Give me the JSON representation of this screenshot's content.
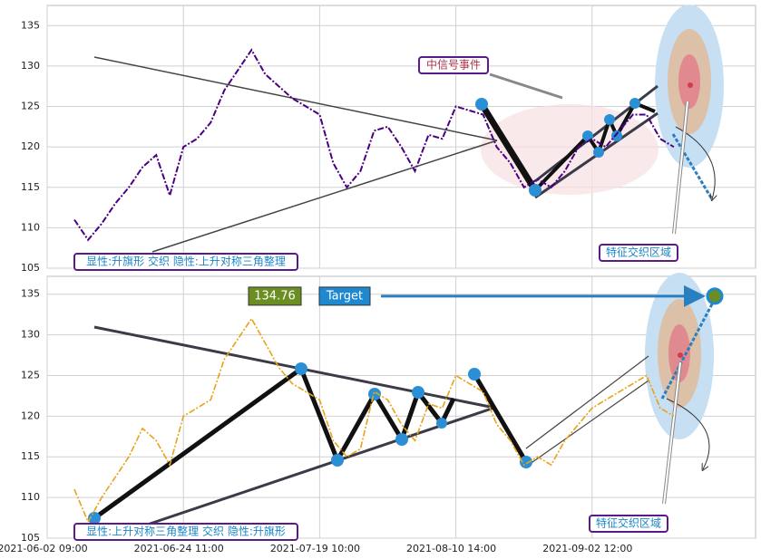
{
  "chart_data": [
    {
      "type": "line",
      "x": [
        4,
        6,
        8,
        10,
        12,
        14,
        16,
        18,
        20,
        22,
        24,
        26,
        28,
        30,
        32,
        34,
        36,
        38,
        40,
        42,
        44,
        46,
        48,
        50,
        52,
        54,
        56,
        58,
        60,
        62,
        64,
        66,
        68,
        70,
        72,
        74,
        76,
        78,
        80,
        82,
        84,
        86,
        88,
        90,
        92
      ],
      "series": [
        {
          "color": "#4b0082",
          "values": [
            111,
            108.5,
            110.5,
            113,
            115,
            117.5,
            119,
            114,
            120,
            121,
            123,
            127,
            129.5,
            132,
            129,
            127.5,
            126,
            125,
            124,
            118,
            115,
            117,
            122,
            122.5,
            120,
            117,
            121.5,
            121,
            125,
            124.5,
            124,
            120,
            118,
            115,
            116,
            115,
            117,
            120,
            121,
            120,
            122,
            124,
            124,
            121,
            120
          ]
        }
      ],
      "xlim": [
        0,
        104
      ],
      "ylim": [
        105,
        137.5
      ],
      "yticks": [
        105,
        110,
        115,
        120,
        125,
        130,
        135
      ],
      "grid": true,
      "annotations": [
        "显性:升旗形 交织 隐性:上升对称三角整理",
        "中信号事件",
        "特征交织区域"
      ]
    },
    {
      "type": "line",
      "x": [
        4,
        6,
        8,
        10,
        12,
        14,
        16,
        18,
        20,
        22,
        24,
        26,
        28,
        30,
        32,
        34,
        36,
        38,
        40,
        42,
        44,
        46,
        48,
        50,
        52,
        54,
        56,
        58,
        60,
        62,
        64,
        66,
        68,
        70,
        72,
        74,
        76,
        78,
        80,
        82,
        84,
        86,
        88,
        90,
        92
      ],
      "series": [
        {
          "color": "#e8a317",
          "values": [
            111,
            107,
            110,
            112.5,
            115,
            118.5,
            117,
            114,
            120,
            121,
            122,
            127,
            129.5,
            132,
            129,
            126,
            124,
            123,
            122,
            117,
            115,
            116,
            123,
            122,
            119,
            117,
            121.5,
            121,
            125,
            124,
            123,
            119,
            117,
            114,
            115,
            114,
            117,
            119,
            121,
            122,
            123,
            124,
            125,
            121,
            120
          ]
        }
      ],
      "xlim": [
        0,
        104
      ],
      "ylim": [
        105,
        137.2
      ],
      "yticks": [
        105,
        110,
        115,
        120,
        125,
        130,
        135
      ],
      "grid": true,
      "xticks": [
        {
          "value": 0,
          "label": "2021-06-02 09:00"
        },
        {
          "value": 20,
          "label": "2021-06-24 11:00"
        },
        {
          "value": 40,
          "label": "2021-07-19 10:00"
        },
        {
          "value": 60,
          "label": "2021-08-10 14:00"
        },
        {
          "value": 80,
          "label": "2021-09-02 12:00"
        }
      ],
      "target_value": 134.76,
      "target_label": "Target",
      "annotations": [
        "显性:上升对称三角整理 交织 隐性:升旗形",
        "特征交织区域"
      ]
    }
  ]
}
